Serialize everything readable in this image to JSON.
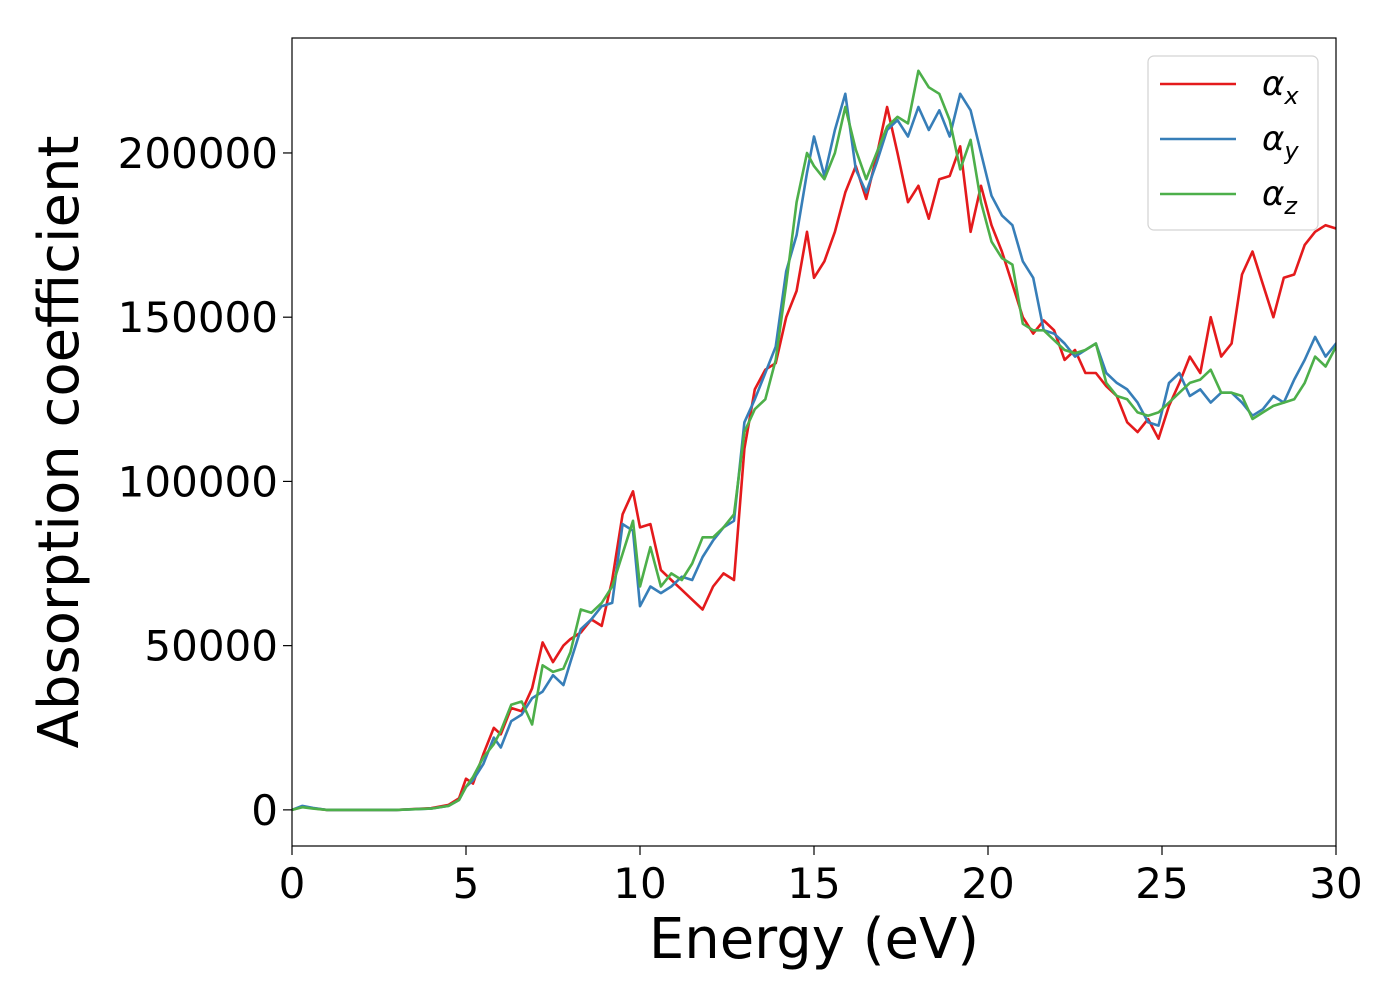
{
  "chart_data": {
    "type": "line",
    "title": "",
    "xlabel": "Energy (eV)",
    "ylabel": "Absorption coefficient",
    "xlim": [
      0,
      30
    ],
    "ylim": [
      -11000,
      235000
    ],
    "xticks": [
      0,
      5,
      10,
      15,
      20,
      25,
      30
    ],
    "yticks": [
      0,
      50000,
      100000,
      150000,
      200000
    ],
    "grid": false,
    "legend_position": "top-right",
    "series": [
      {
        "name": "α_x",
        "legend_base": "α",
        "legend_sub": "x",
        "color": "#e41a1c",
        "x": [
          0,
          0.3,
          0.6,
          1,
          2,
          3,
          4,
          4.5,
          4.8,
          5,
          5.2,
          5.5,
          5.8,
          6,
          6.3,
          6.6,
          6.9,
          7.2,
          7.5,
          7.8,
          8,
          8.3,
          8.6,
          8.9,
          9.2,
          9.5,
          9.8,
          10,
          10.3,
          10.6,
          10.9,
          11.2,
          11.5,
          11.8,
          12.1,
          12.4,
          12.7,
          13,
          13.3,
          13.6,
          13.9,
          14.2,
          14.5,
          14.8,
          15,
          15.3,
          15.6,
          15.9,
          16.2,
          16.5,
          16.8,
          17.1,
          17.4,
          17.7,
          18,
          18.3,
          18.6,
          18.9,
          19.2,
          19.5,
          19.8,
          20.1,
          20.4,
          20.7,
          21,
          21.3,
          21.6,
          21.9,
          22.2,
          22.5,
          22.8,
          23.1,
          23.4,
          23.7,
          24,
          24.3,
          24.6,
          24.9,
          25.2,
          25.5,
          25.8,
          26.1,
          26.4,
          26.7,
          27,
          27.3,
          27.6,
          27.9,
          28.2,
          28.5,
          28.8,
          29.1,
          29.4,
          29.7,
          30
        ],
        "y": [
          0,
          1000,
          500,
          0,
          0,
          0,
          500,
          1500,
          3500,
          9500,
          8000,
          17000,
          25000,
          23000,
          31000,
          30000,
          37000,
          51000,
          45000,
          50000,
          52000,
          54000,
          58000,
          56000,
          70000,
          90000,
          97000,
          86000,
          87000,
          73000,
          70000,
          67000,
          64000,
          61000,
          68000,
          72000,
          70000,
          110000,
          128000,
          134000,
          136000,
          150000,
          158000,
          176000,
          162000,
          167000,
          176000,
          188000,
          196000,
          186000,
          199000,
          214000,
          200000,
          185000,
          190000,
          180000,
          192000,
          193000,
          202000,
          176000,
          190000,
          178000,
          170000,
          160000,
          150000,
          145000,
          149000,
          146000,
          137000,
          140000,
          133000,
          133000,
          129000,
          126000,
          118000,
          115000,
          119000,
          113000,
          123000,
          130000,
          138000,
          133000,
          150000,
          138000,
          142000,
          163000,
          170000,
          160000,
          150000,
          162000,
          163000,
          172000,
          176000,
          178000,
          177000
        ]
      },
      {
        "name": "α_y",
        "legend_base": "α",
        "legend_sub": "y",
        "color": "#377eb8",
        "x": [
          0,
          0.3,
          0.6,
          1,
          2,
          3,
          4,
          4.5,
          4.8,
          5,
          5.2,
          5.5,
          5.8,
          6,
          6.3,
          6.6,
          6.9,
          7.2,
          7.5,
          7.8,
          8,
          8.3,
          8.6,
          8.9,
          9.2,
          9.5,
          9.8,
          10,
          10.3,
          10.6,
          10.9,
          11.2,
          11.5,
          11.8,
          12.1,
          12.4,
          12.7,
          13,
          13.3,
          13.6,
          13.9,
          14.2,
          14.5,
          14.8,
          15,
          15.3,
          15.6,
          15.9,
          16.2,
          16.5,
          16.8,
          17.1,
          17.4,
          17.7,
          18,
          18.3,
          18.6,
          18.9,
          19.2,
          19.5,
          19.8,
          20.1,
          20.4,
          20.7,
          21,
          21.3,
          21.6,
          21.9,
          22.2,
          22.5,
          22.8,
          23.1,
          23.4,
          23.7,
          24,
          24.3,
          24.6,
          24.9,
          25.2,
          25.5,
          25.8,
          26.1,
          26.4,
          26.7,
          27,
          27.3,
          27.6,
          27.9,
          28.2,
          28.5,
          28.8,
          29.1,
          29.4,
          29.7,
          30
        ],
        "y": [
          0,
          1200,
          600,
          0,
          0,
          0,
          400,
          1200,
          3000,
          7000,
          9000,
          14000,
          22000,
          19000,
          27000,
          29000,
          34000,
          36000,
          41000,
          38000,
          45000,
          55000,
          58000,
          62000,
          63000,
          87000,
          85000,
          62000,
          68000,
          66000,
          68000,
          71000,
          70000,
          77000,
          82000,
          86000,
          88000,
          118000,
          125000,
          133000,
          141000,
          164000,
          175000,
          194000,
          205000,
          193000,
          207000,
          218000,
          195000,
          188000,
          197000,
          207000,
          210000,
          205000,
          214000,
          207000,
          213000,
          205000,
          218000,
          213000,
          200000,
          187000,
          181000,
          178000,
          167000,
          162000,
          146000,
          145000,
          142000,
          138000,
          140000,
          142000,
          133000,
          130000,
          128000,
          124000,
          118000,
          117000,
          130000,
          133000,
          126000,
          128000,
          124000,
          127000,
          127000,
          124000,
          120000,
          122000,
          126000,
          124000,
          131000,
          137000,
          144000,
          138000,
          142000
        ]
      },
      {
        "name": "α_z",
        "legend_base": "α",
        "legend_sub": "z",
        "color": "#4daf4a",
        "x": [
          0,
          0.3,
          0.6,
          1,
          2,
          3,
          4,
          4.5,
          4.8,
          5,
          5.2,
          5.5,
          5.8,
          6,
          6.3,
          6.6,
          6.9,
          7.2,
          7.5,
          7.8,
          8,
          8.3,
          8.6,
          8.9,
          9.2,
          9.5,
          9.8,
          10,
          10.3,
          10.6,
          10.9,
          11.2,
          11.5,
          11.8,
          12.1,
          12.4,
          12.7,
          13,
          13.3,
          13.6,
          13.9,
          14.2,
          14.5,
          14.8,
          15,
          15.3,
          15.6,
          15.9,
          16.2,
          16.5,
          16.8,
          17.1,
          17.4,
          17.7,
          18,
          18.3,
          18.6,
          18.9,
          19.2,
          19.5,
          19.8,
          20.1,
          20.4,
          20.7,
          21,
          21.3,
          21.6,
          21.9,
          22.2,
          22.5,
          22.8,
          23.1,
          23.4,
          23.7,
          24,
          24.3,
          24.6,
          24.9,
          25.2,
          25.5,
          25.8,
          26.1,
          26.4,
          26.7,
          27,
          27.3,
          27.6,
          27.9,
          28.2,
          28.5,
          28.8,
          29.1,
          29.4,
          29.7,
          30
        ],
        "y": [
          0,
          800,
          400,
          0,
          0,
          0,
          400,
          1200,
          3000,
          7000,
          10000,
          16000,
          20000,
          24000,
          32000,
          33000,
          26000,
          44000,
          42000,
          43000,
          48000,
          61000,
          60000,
          63000,
          68000,
          78000,
          88000,
          68000,
          80000,
          68000,
          72000,
          70000,
          75000,
          83000,
          83000,
          86000,
          90000,
          115000,
          122000,
          125000,
          137000,
          160000,
          185000,
          200000,
          196000,
          192000,
          200000,
          214000,
          201000,
          192000,
          200000,
          208000,
          211000,
          209000,
          225000,
          220000,
          218000,
          210000,
          195000,
          204000,
          185000,
          173000,
          168000,
          166000,
          148000,
          146000,
          146000,
          143000,
          140000,
          139000,
          140000,
          142000,
          130000,
          126000,
          125000,
          121000,
          120000,
          121000,
          124000,
          127000,
          130000,
          131000,
          134000,
          127000,
          127000,
          126000,
          119000,
          121000,
          123000,
          124000,
          125000,
          130000,
          138000,
          135000,
          141000
        ]
      }
    ]
  }
}
